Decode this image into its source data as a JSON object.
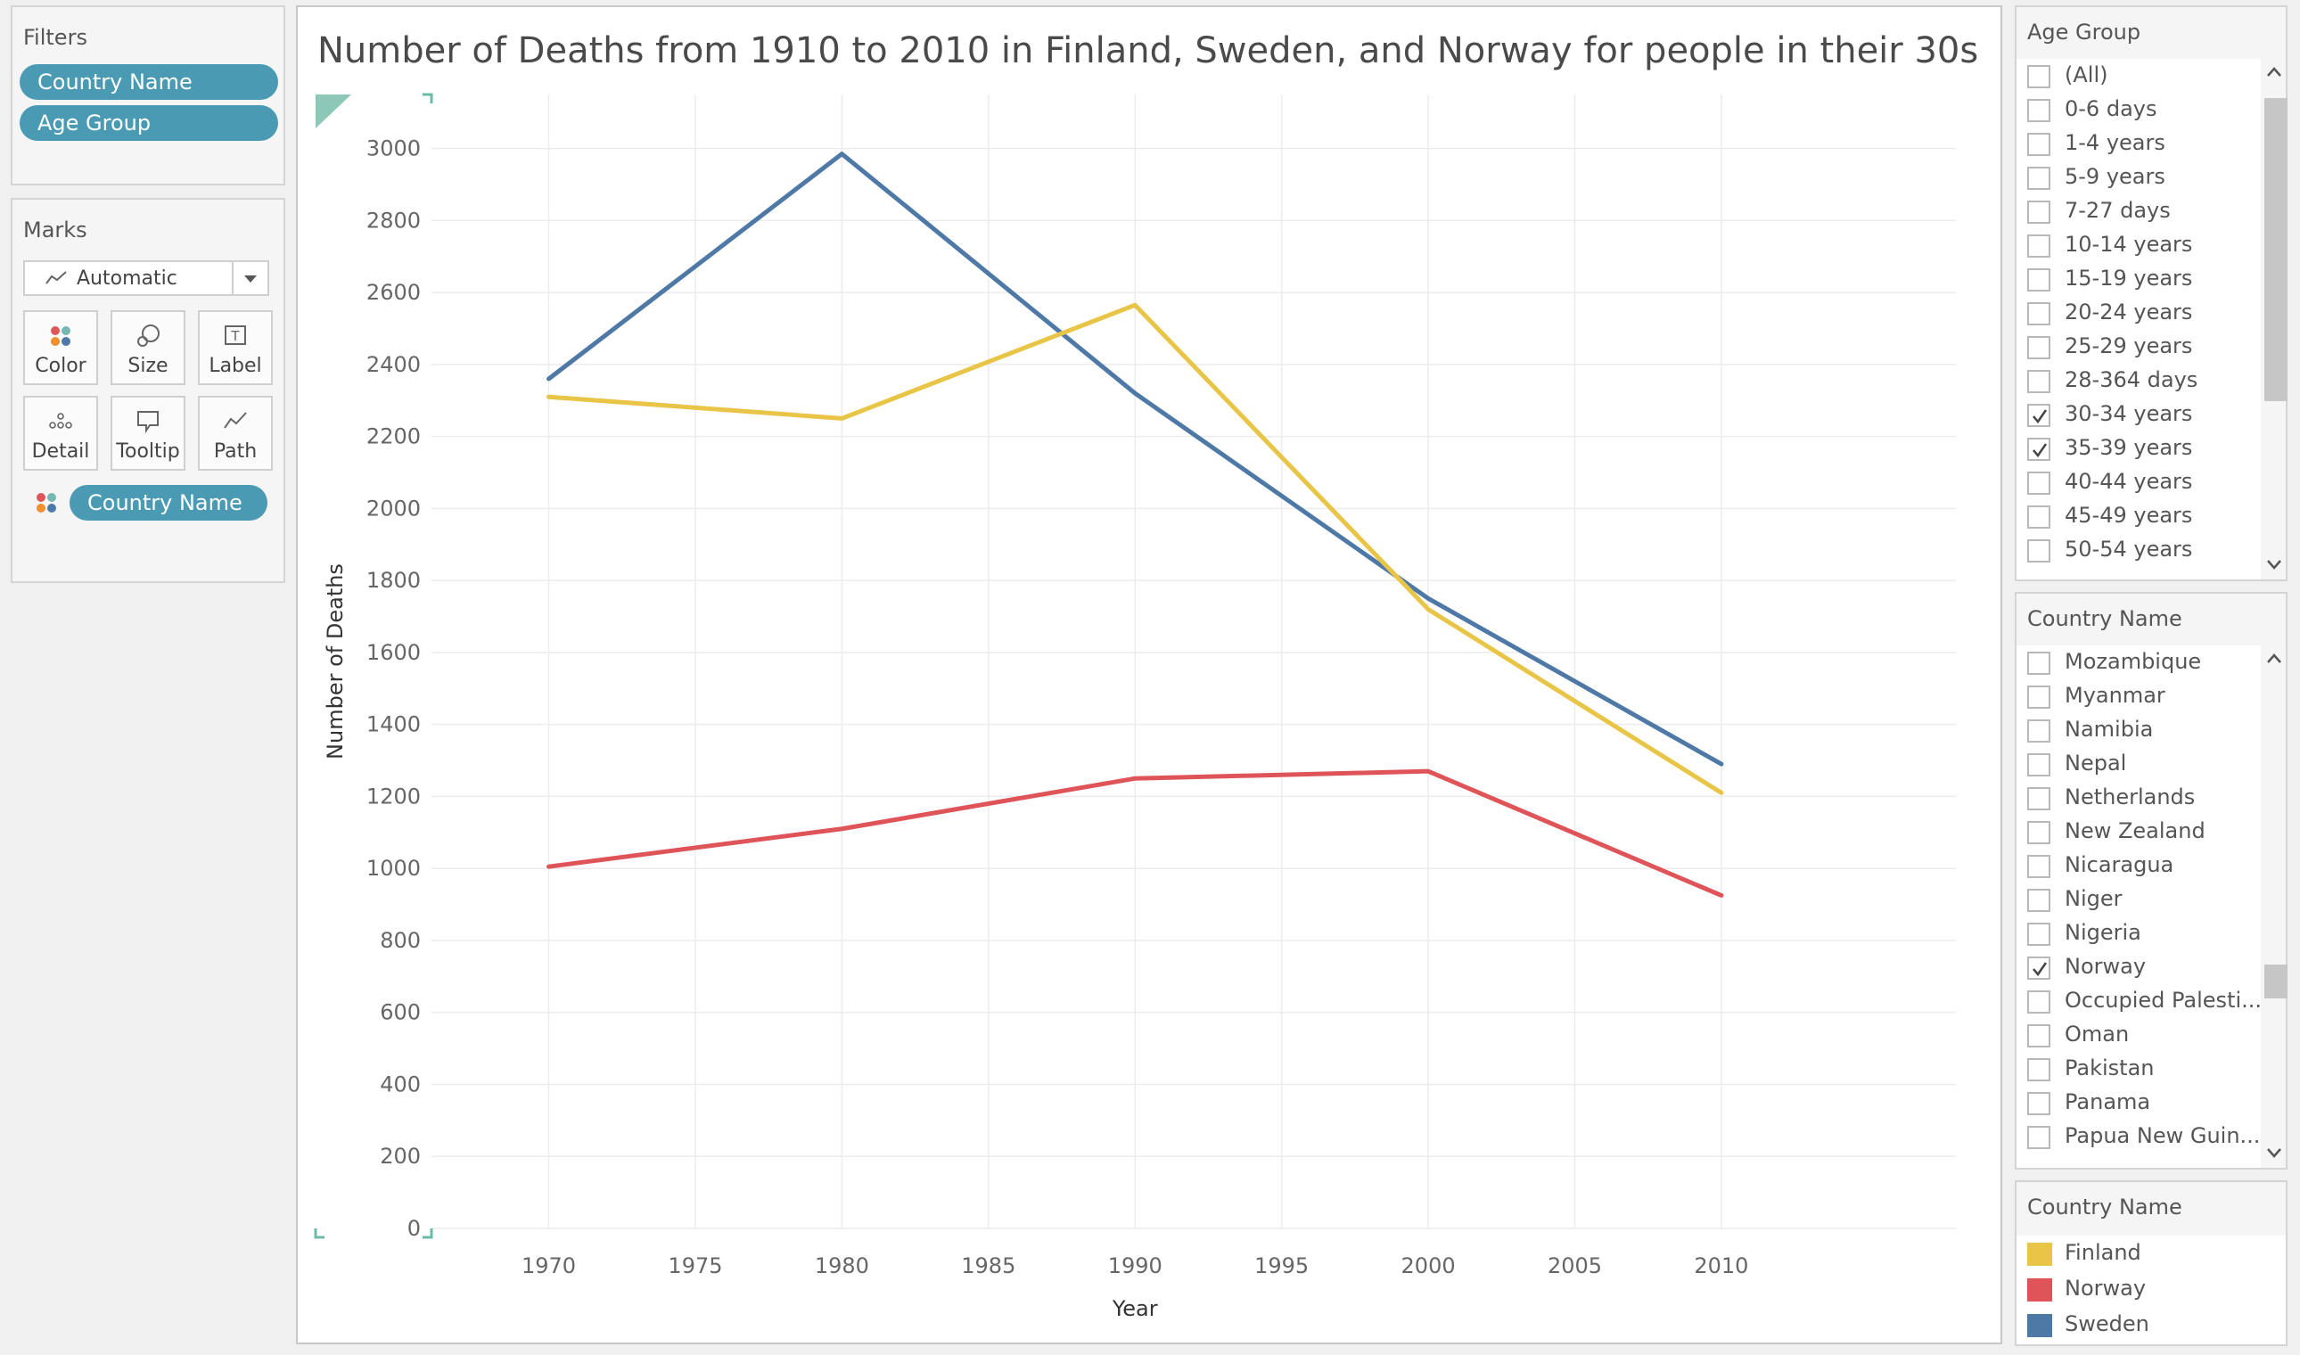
{
  "filters": {
    "title": "Filters",
    "pills": [
      "Country Name",
      "Age Group"
    ]
  },
  "marks": {
    "title": "Marks",
    "mark_type": "Automatic",
    "buttons": [
      "Color",
      "Size",
      "Label",
      "Detail",
      "Tooltip",
      "Path"
    ],
    "color_pill": "Country Name"
  },
  "chart": {
    "title": "Number of Deaths from 1910 to 2010 in Finland, Sweden, and Norway for people in their 30s"
  },
  "age_group_filter": {
    "title": "Age Group",
    "items": [
      {
        "label": "(All)",
        "checked": false
      },
      {
        "label": "0-6 days",
        "checked": false
      },
      {
        "label": "1-4 years",
        "checked": false
      },
      {
        "label": "5-9 years",
        "checked": false
      },
      {
        "label": "7-27 days",
        "checked": false
      },
      {
        "label": "10-14 years",
        "checked": false
      },
      {
        "label": "15-19 years",
        "checked": false
      },
      {
        "label": "20-24 years",
        "checked": false
      },
      {
        "label": "25-29 years",
        "checked": false
      },
      {
        "label": "28-364 days",
        "checked": false
      },
      {
        "label": "30-34 years",
        "checked": true
      },
      {
        "label": "35-39 years",
        "checked": true
      },
      {
        "label": "40-44 years",
        "checked": false
      },
      {
        "label": "45-49 years",
        "checked": false
      },
      {
        "label": "50-54 years",
        "checked": false
      }
    ]
  },
  "country_filter": {
    "title": "Country Name",
    "items": [
      {
        "label": "Mozambique",
        "checked": false
      },
      {
        "label": "Myanmar",
        "checked": false
      },
      {
        "label": "Namibia",
        "checked": false
      },
      {
        "label": "Nepal",
        "checked": false
      },
      {
        "label": "Netherlands",
        "checked": false
      },
      {
        "label": "New Zealand",
        "checked": false
      },
      {
        "label": "Nicaragua",
        "checked": false
      },
      {
        "label": "Niger",
        "checked": false
      },
      {
        "label": "Nigeria",
        "checked": false
      },
      {
        "label": "Norway",
        "checked": true
      },
      {
        "label": "Occupied Palesti...",
        "checked": false
      },
      {
        "label": "Oman",
        "checked": false
      },
      {
        "label": "Pakistan",
        "checked": false
      },
      {
        "label": "Panama",
        "checked": false
      },
      {
        "label": "Papua New Guin...",
        "checked": false
      }
    ]
  },
  "legend": {
    "title": "Country Name",
    "items": [
      {
        "label": "Finland",
        "color": "#e8c547"
      },
      {
        "label": "Norway",
        "color": "#de5458"
      },
      {
        "label": "Sweden",
        "color": "#4e79a7"
      }
    ]
  },
  "chart_data": {
    "type": "line",
    "title": "Number of Deaths from 1910 to 2010 in Finland, Sweden, and Norway for people in their 30s",
    "xlabel": "Year",
    "ylabel": "Number of Deaths",
    "x": [
      1970,
      1980,
      1990,
      2000,
      2010
    ],
    "x_ticks": [
      1970,
      1975,
      1980,
      1985,
      1990,
      1995,
      2000,
      2005,
      2010
    ],
    "y_ticks": [
      0,
      200,
      400,
      600,
      800,
      1000,
      1200,
      1400,
      1600,
      1800,
      2000,
      2200,
      2400,
      2600,
      2800,
      3000
    ],
    "xlim": [
      1966,
      2018
    ],
    "ylim": [
      0,
      3150
    ],
    "grid": true,
    "series": [
      {
        "name": "Sweden",
        "color": "#4e79a7",
        "values": [
          2360,
          2985,
          2320,
          1750,
          1290
        ]
      },
      {
        "name": "Finland",
        "color": "#e8c547",
        "values": [
          2310,
          2250,
          2565,
          1720,
          1210
        ]
      },
      {
        "name": "Norway",
        "color": "#de5458",
        "values": [
          1005,
          1110,
          1250,
          1270,
          925
        ]
      }
    ]
  }
}
